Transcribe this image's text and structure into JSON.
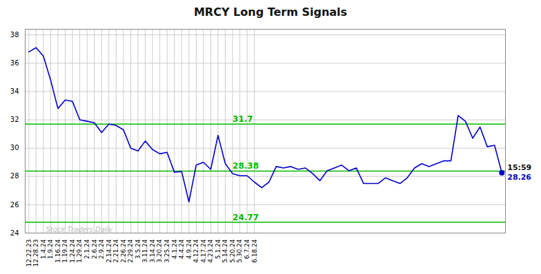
{
  "chart_data": {
    "type": "line",
    "title": "MRCY Long Term Signals",
    "categories": [
      "12.22.23",
      "12.28.23",
      "1.4.24",
      "1.9.24",
      "1.16.24",
      "1.19.24",
      "1.24.24",
      "1.29.24",
      "2.1.24",
      "2.6.24",
      "2.9.24",
      "2.14.24",
      "2.21.24",
      "2.26.24",
      "2.29.24",
      "3.5.24",
      "3.11.24",
      "3.14.24",
      "3.20.24",
      "3.25.24",
      "4.1.24",
      "4.4.24",
      "4.9.24",
      "4.12.24",
      "4.17.24",
      "4.23.24",
      "5.1.24",
      "5.14.24",
      "5.20.24",
      "5.30.24",
      "6.7.24",
      "6.18.24",
      null,
      null,
      null,
      null,
      null,
      null,
      null,
      null,
      null,
      null,
      null,
      null,
      null,
      null,
      null,
      null,
      null,
      null,
      null,
      null,
      null,
      null,
      null,
      null,
      null,
      null,
      null,
      null,
      null,
      null,
      null,
      null,
      null,
      null
    ],
    "values": [
      36.8,
      37.1,
      36.5,
      34.8,
      32.8,
      33.4,
      33.3,
      32.0,
      31.9,
      31.8,
      31.1,
      31.7,
      31.6,
      31.3,
      30.0,
      29.8,
      30.5,
      29.9,
      29.6,
      29.7,
      28.3,
      28.35,
      26.2,
      28.8,
      29.0,
      28.5,
      30.9,
      28.9,
      28.2,
      28.05,
      28.05,
      27.6,
      27.2,
      27.6,
      28.7,
      28.6,
      28.7,
      28.5,
      28.6,
      28.2,
      27.7,
      28.4,
      28.6,
      28.8,
      28.4,
      28.6,
      27.5,
      27.5,
      27.5,
      27.9,
      27.7,
      27.5,
      27.9,
      28.6,
      28.9,
      28.7,
      28.9,
      29.1,
      29.1,
      32.3,
      31.9,
      30.7,
      31.5,
      30.1,
      30.2,
      28.26
    ],
    "color": "#0000cc",
    "hlines": [
      {
        "value": 31.7,
        "label": "31.7",
        "color": "#00bb00"
      },
      {
        "value": 28.38,
        "label": "28.38",
        "color": "#00bb00"
      },
      {
        "value": 24.77,
        "label": "24.77",
        "color": "#00bb00"
      }
    ],
    "last_point": {
      "time": "15:59",
      "price_label": "28.26",
      "color": "#0000cc"
    },
    "watermark": "Stock Traders Daily",
    "ylim": [
      24.0,
      38.4
    ],
    "yticks": [
      24,
      26,
      28,
      30,
      32,
      34,
      36,
      38
    ],
    "grid": true
  }
}
